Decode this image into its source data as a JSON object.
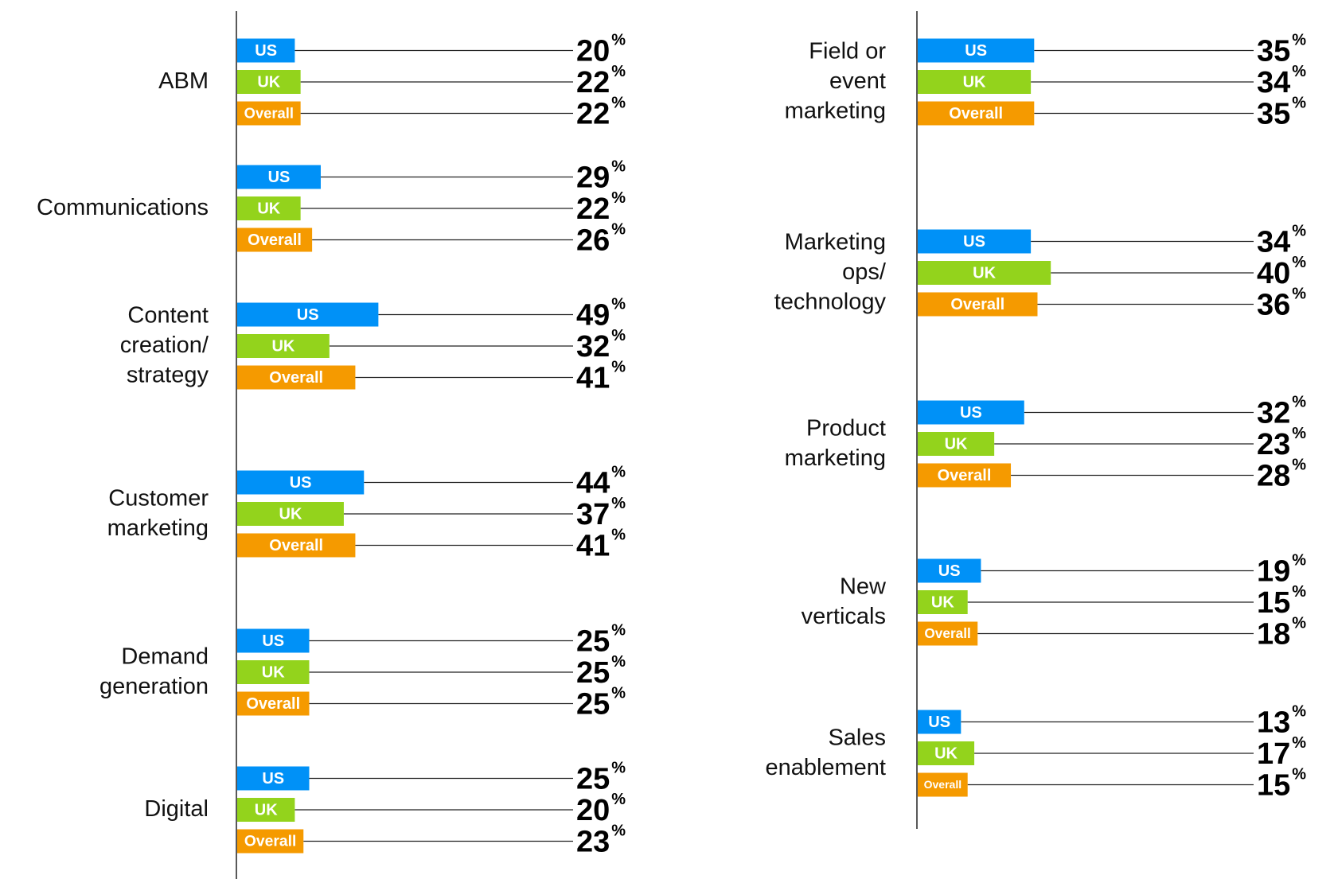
{
  "chart_data": [
    {
      "type": "bar",
      "series_colors": {
        "US": "#0091f7",
        "UK": "#93d31c",
        "Overall": "#f59a00"
      },
      "value_suffix": "%",
      "categories": [
        "ABM",
        "Communications",
        "Content creation/ strategy",
        "Customer marketing",
        "Demand generation",
        "Digital"
      ],
      "category_lines": [
        [
          "ABM"
        ],
        [
          "Communications"
        ],
        [
          "Content",
          "creation/",
          "strategy"
        ],
        [
          "Customer",
          "marketing"
        ],
        [
          "Demand",
          "generation"
        ],
        [
          "Digital"
        ]
      ],
      "series": [
        {
          "name": "US",
          "values": [
            20,
            29,
            49,
            44,
            25,
            25
          ]
        },
        {
          "name": "UK",
          "values": [
            22,
            22,
            32,
            37,
            25,
            20
          ]
        },
        {
          "name": "Overall",
          "values": [
            22,
            26,
            41,
            41,
            25,
            23
          ]
        }
      ]
    },
    {
      "type": "bar",
      "series_colors": {
        "US": "#0091f7",
        "UK": "#93d31c",
        "Overall": "#f59a00"
      },
      "value_suffix": "%",
      "categories": [
        "Field or event marketing",
        "Marketing ops/ technology",
        "Product marketing",
        "New verticals",
        "Sales enablement"
      ],
      "category_lines": [
        [
          "Field or",
          "event",
          "marketing"
        ],
        [
          "Marketing",
          "ops/",
          "technology"
        ],
        [
          "Product",
          "marketing"
        ],
        [
          "New",
          "verticals"
        ],
        [
          "Sales",
          "enablement"
        ]
      ],
      "series": [
        {
          "name": "US",
          "values": [
            35,
            34,
            32,
            19,
            13
          ]
        },
        {
          "name": "UK",
          "values": [
            34,
            40,
            23,
            15,
            17
          ]
        },
        {
          "name": "Overall",
          "values": [
            35,
            36,
            28,
            18,
            15
          ]
        }
      ]
    }
  ]
}
